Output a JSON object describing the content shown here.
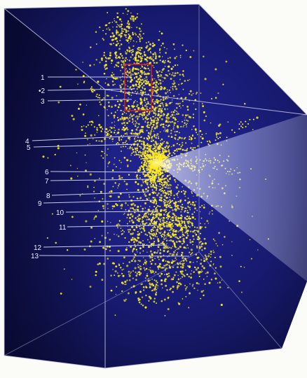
{
  "colors": {
    "background": "#fbfbf8",
    "box_fill_deep": "#0b0c3a",
    "box_fill_mid": "#1b1d7a",
    "box_edge": "#c9c9e8",
    "galaxy_dot": "#ffee22",
    "marker_line": "#d9dcff",
    "marker_box": "#d61e1e",
    "beam": "#eef3ff",
    "label_text": "#eef0ff"
  },
  "markers": [
    {
      "id": "1",
      "label": "1"
    },
    {
      "id": "2",
      "label": "•2"
    },
    {
      "id": "3",
      "label": "3"
    },
    {
      "id": "4",
      "label": "4"
    },
    {
      "id": "5",
      "label": "5"
    },
    {
      "id": "6",
      "label": "6"
    },
    {
      "id": "7",
      "label": "7"
    },
    {
      "id": "8",
      "label": "8"
    },
    {
      "id": "9",
      "label": "9"
    },
    {
      "id": "10",
      "label": "10"
    },
    {
      "id": "11",
      "label": "11"
    },
    {
      "id": "12",
      "label": "12"
    },
    {
      "id": "13",
      "label": "13"
    }
  ],
  "elements": {
    "galaxy_cloud": "scatter of galaxy points",
    "beam": "cone of light from the origin",
    "highlight_box": "red rectangle"
  }
}
